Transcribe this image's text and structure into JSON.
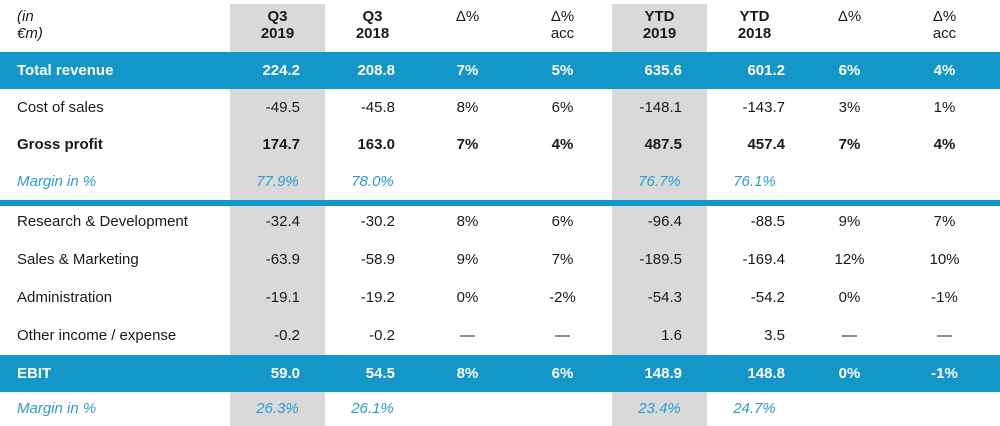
{
  "colors": {
    "accent": "#1297c8",
    "shade": "#d9d9d9",
    "margin_text": "#2aa0d0"
  },
  "header": {
    "unit": "(in €m)",
    "cols": [
      {
        "line1": "Q3",
        "line2": "2019"
      },
      {
        "line1": "Q3",
        "line2": "2018"
      },
      {
        "line1": "Δ%",
        "line2": ""
      },
      {
        "line1": "Δ%",
        "line2": "acc"
      },
      {
        "line1": "YTD",
        "line2": "2019"
      },
      {
        "line1": "YTD",
        "line2": "2018"
      },
      {
        "line1": "Δ%",
        "line2": ""
      },
      {
        "line1": "Δ%",
        "line2": "acc"
      }
    ]
  },
  "rows": [
    {
      "label": "Total revenue",
      "values": [
        "224.2",
        "208.8",
        "7%",
        "5%",
        "635.6",
        "601.2",
        "6%",
        "4%"
      ]
    },
    {
      "label": "Cost of sales",
      "values": [
        "-49.5",
        "-45.8",
        "8%",
        "6%",
        "-148.1",
        "-143.7",
        "3%",
        "1%"
      ]
    },
    {
      "label": "Gross profit",
      "values": [
        "174.7",
        "163.0",
        "7%",
        "4%",
        "487.5",
        "457.4",
        "7%",
        "4%"
      ]
    },
    {
      "label": "Margin in %",
      "values": [
        "77.9%",
        "78.0%",
        "",
        "",
        "76.7%",
        "76.1%",
        "",
        ""
      ]
    },
    {
      "label": "Research & Development",
      "values": [
        "-32.4",
        "-30.2",
        "8%",
        "6%",
        "-96.4",
        "-88.5",
        "9%",
        "7%"
      ]
    },
    {
      "label": "Sales & Marketing",
      "values": [
        "-63.9",
        "-58.9",
        "9%",
        "7%",
        "-189.5",
        "-169.4",
        "12%",
        "10%"
      ]
    },
    {
      "label": "Administration",
      "values": [
        "-19.1",
        "-19.2",
        "0%",
        "-2%",
        "-54.3",
        "-54.2",
        "0%",
        "-1%"
      ]
    },
    {
      "label": "Other income / expense",
      "values": [
        "-0.2",
        "-0.2",
        "—",
        "—",
        "1.6",
        "3.5",
        "—",
        "—"
      ]
    },
    {
      "label": "EBIT",
      "values": [
        "59.0",
        "54.5",
        "8%",
        "6%",
        "148.9",
        "148.8",
        "0%",
        "-1%"
      ]
    },
    {
      "label": "Margin in %",
      "values": [
        "26.3%",
        "26.1%",
        "",
        "",
        "23.4%",
        "24.7%",
        "",
        ""
      ]
    }
  ]
}
